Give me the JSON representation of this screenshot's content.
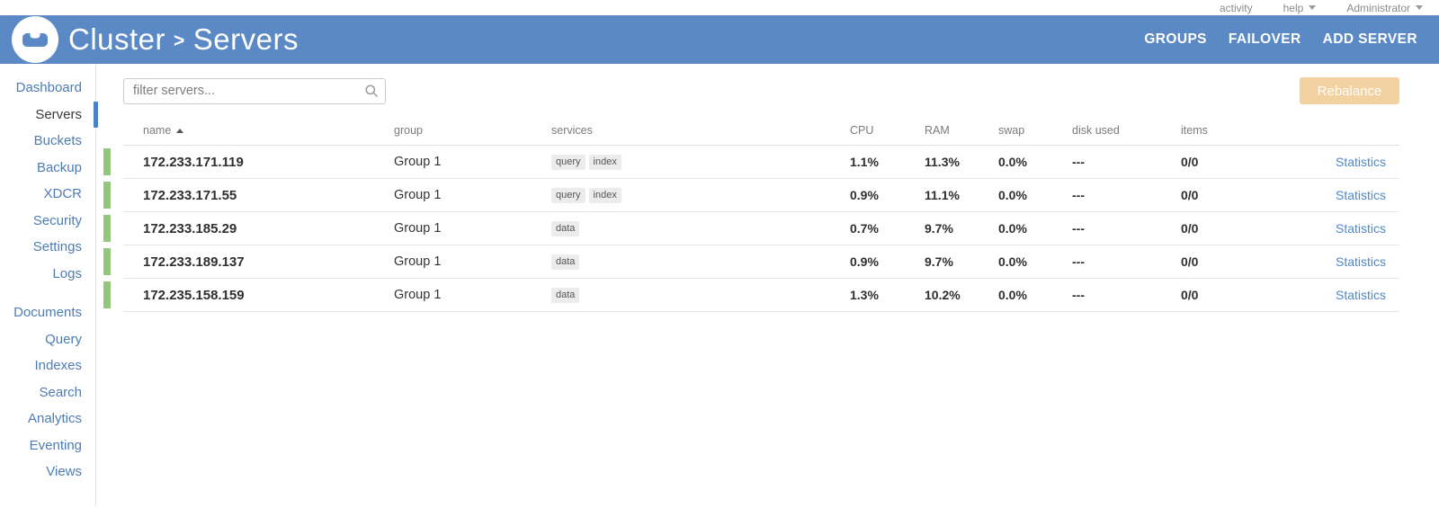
{
  "topbar": {
    "activity": "activity",
    "help": "help",
    "user": "Administrator"
  },
  "header": {
    "title": {
      "left": "Cluster",
      "sep": ">",
      "right": "Servers"
    },
    "actions": [
      "GROUPS",
      "FAILOVER",
      "ADD SERVER"
    ]
  },
  "sidebar": {
    "active": "Servers",
    "group1": [
      "Dashboard",
      "Servers",
      "Buckets",
      "Backup",
      "XDCR",
      "Security",
      "Settings",
      "Logs"
    ],
    "group2": [
      "Documents",
      "Query",
      "Indexes",
      "Search",
      "Analytics",
      "Eventing",
      "Views"
    ]
  },
  "toolbar": {
    "filter_placeholder": "filter servers...",
    "rebalance": "Rebalance"
  },
  "table": {
    "columns": [
      "name",
      "group",
      "services",
      "CPU",
      "RAM",
      "swap",
      "disk used",
      "items"
    ],
    "stats_label": "Statistics",
    "rows": [
      {
        "name": "172.233.171.119",
        "group": "Group 1",
        "services": [
          "query",
          "index"
        ],
        "cpu": "1.1%",
        "ram": "11.3%",
        "swap": "0.0%",
        "disk_used": "---",
        "items": "0/0"
      },
      {
        "name": "172.233.171.55",
        "group": "Group 1",
        "services": [
          "query",
          "index"
        ],
        "cpu": "0.9%",
        "ram": "11.1%",
        "swap": "0.0%",
        "disk_used": "---",
        "items": "0/0"
      },
      {
        "name": "172.233.185.29",
        "group": "Group 1",
        "services": [
          "data"
        ],
        "cpu": "0.7%",
        "ram": "9.7%",
        "swap": "0.0%",
        "disk_used": "---",
        "items": "0/0"
      },
      {
        "name": "172.233.189.137",
        "group": "Group 1",
        "services": [
          "data"
        ],
        "cpu": "0.9%",
        "ram": "9.7%",
        "swap": "0.0%",
        "disk_used": "---",
        "items": "0/0"
      },
      {
        "name": "172.235.158.159",
        "group": "Group 1",
        "services": [
          "data"
        ],
        "cpu": "1.3%",
        "ram": "10.2%",
        "swap": "0.0%",
        "disk_used": "---",
        "items": "0/0"
      }
    ]
  },
  "colors": {
    "header_blue": "#5b89c6",
    "link_blue": "#4e7cb5",
    "stats_blue": "#5088c8",
    "green_bar": "#93c77d",
    "rebalance_bg": "#f2d2a0"
  }
}
